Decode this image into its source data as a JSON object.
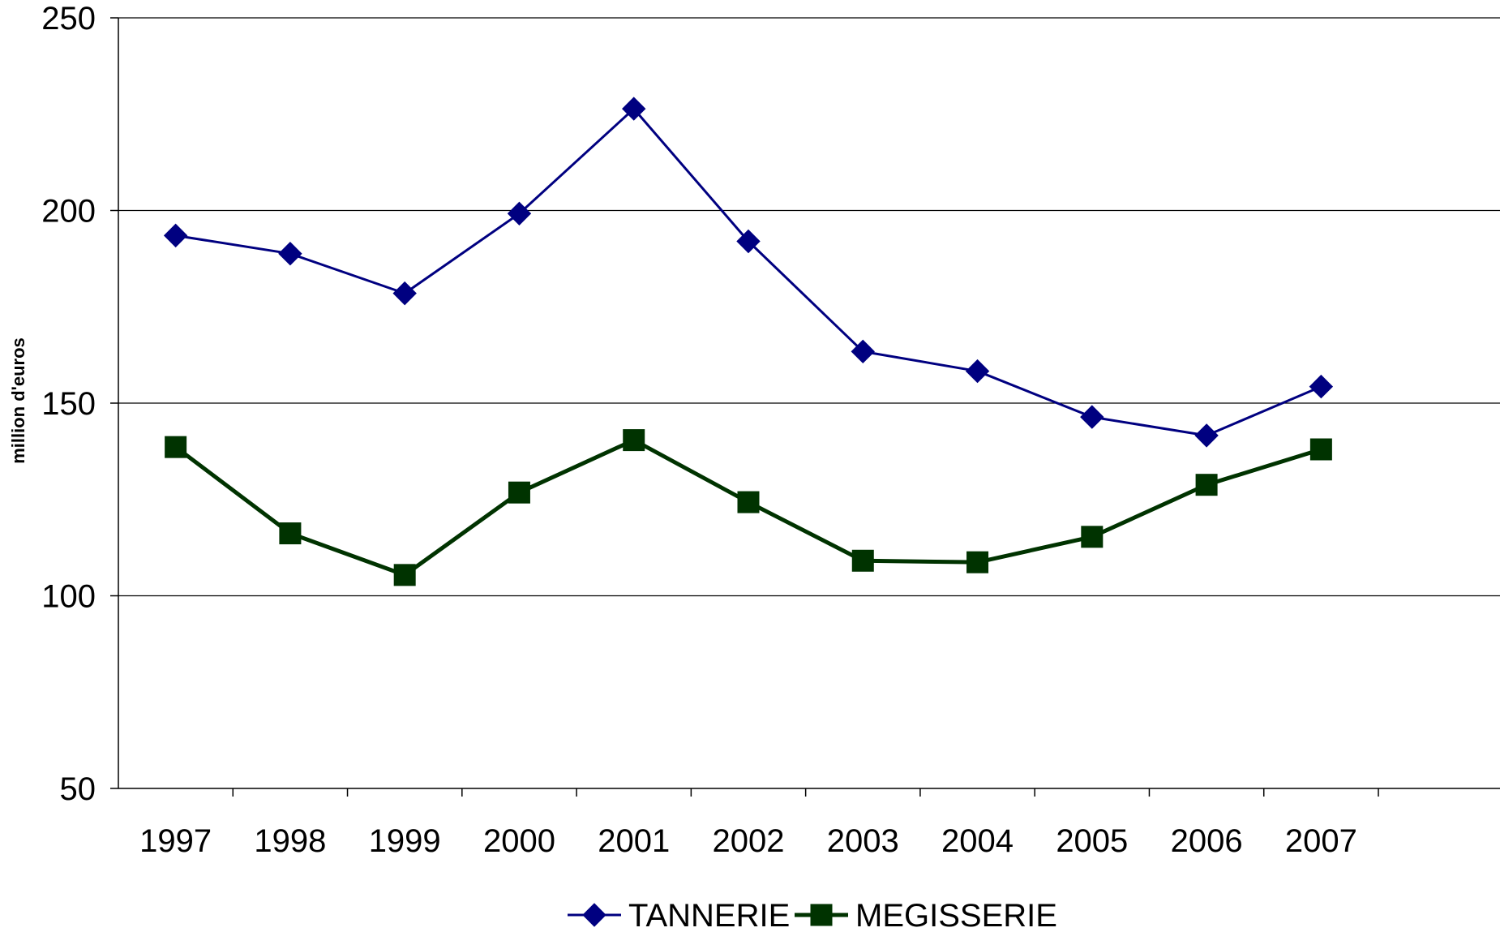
{
  "chart_data": {
    "type": "line",
    "ylabel": "million d'euros",
    "xlabel": "",
    "ylim": [
      50,
      250
    ],
    "yticks": [
      50,
      100,
      150,
      200,
      250
    ],
    "categories": [
      "1997",
      "1998",
      "1999",
      "2000",
      "2001",
      "2002",
      "2003",
      "2004",
      "2005",
      "2006",
      "2007"
    ],
    "grid": "horizontal",
    "legend_position": "bottom",
    "series": [
      {
        "name": "TANNERIE",
        "color": "#000080",
        "marker": "diamond",
        "values": [
          193.5,
          188.8,
          178.5,
          199.2,
          226.4,
          192.0,
          163.4,
          158.3,
          146.4,
          141.6,
          154.3
        ]
      },
      {
        "name": "MEGISSERIE",
        "color": "#003300",
        "marker": "square",
        "values": [
          138.6,
          116.2,
          105.4,
          126.8,
          140.4,
          124.3,
          109.1,
          108.7,
          115.3,
          128.8,
          138.0
        ]
      }
    ]
  }
}
